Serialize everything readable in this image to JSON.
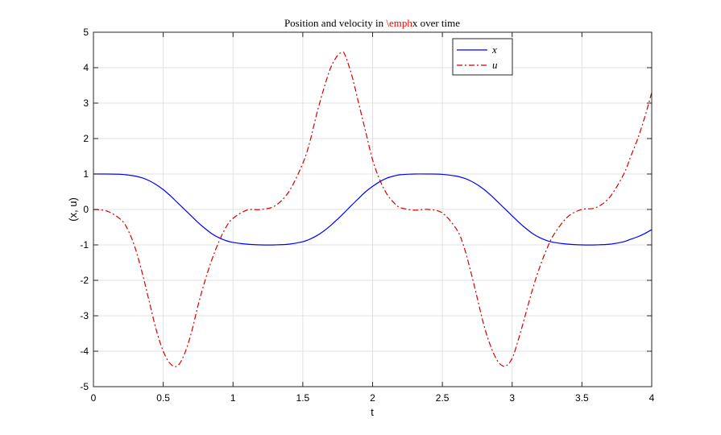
{
  "chart_data": {
    "type": "line",
    "title": {
      "prefix": "Position and velocity in ",
      "highlight": "\\emph",
      "suffix": "x over time",
      "highlight_color": "#ff0000"
    },
    "xlabel": "t",
    "ylabel": "(x, u)",
    "xlim": [
      0,
      4
    ],
    "ylim": [
      -5,
      5
    ],
    "xticks": [
      0,
      0.5,
      1,
      1.5,
      2,
      2.5,
      3,
      3.5,
      4
    ],
    "xtick_labels": [
      "0",
      "0.5",
      "1",
      "1.5",
      "2",
      "2.5",
      "3",
      "3.5",
      "4"
    ],
    "yticks": [
      -5,
      -4,
      -3,
      -2,
      -1,
      0,
      1,
      2,
      3,
      4,
      5
    ],
    "ytick_labels": [
      "-5",
      "-4",
      "-3",
      "-2",
      "-1",
      "0",
      "1",
      "2",
      "3",
      "4",
      "5"
    ],
    "grid": true,
    "legend_position": "top-right",
    "series": [
      {
        "name": "x",
        "color": "#0000ff",
        "style": "solid",
        "x": [
          0,
          0.1,
          0.2,
          0.25,
          0.3,
          0.35,
          0.4,
          0.45,
          0.5,
          0.55,
          0.6,
          0.65,
          0.7,
          0.75,
          0.8,
          0.85,
          0.9,
          0.95,
          1.0,
          1.1,
          1.2,
          1.3,
          1.4,
          1.5,
          1.55,
          1.6,
          1.65,
          1.7,
          1.75,
          1.8,
          1.85,
          1.9,
          1.95,
          2.0,
          2.05,
          2.1,
          2.15,
          2.2,
          2.3,
          2.4,
          2.5,
          2.6,
          2.65,
          2.7,
          2.75,
          2.8,
          2.85,
          2.9,
          2.95,
          3.0,
          3.05,
          3.1,
          3.15,
          3.2,
          3.25,
          3.3,
          3.4,
          3.5,
          3.6,
          3.7,
          3.8,
          3.85,
          3.9,
          3.95,
          4.0
        ],
        "y": [
          1.0,
          1.0,
          0.99,
          0.97,
          0.94,
          0.89,
          0.81,
          0.7,
          0.56,
          0.39,
          0.2,
          0.01,
          -0.18,
          -0.37,
          -0.54,
          -0.69,
          -0.8,
          -0.88,
          -0.93,
          -0.98,
          -1.0,
          -1.0,
          -0.98,
          -0.91,
          -0.84,
          -0.74,
          -0.61,
          -0.45,
          -0.27,
          -0.08,
          0.12,
          0.31,
          0.5,
          0.65,
          0.78,
          0.88,
          0.94,
          0.98,
          1.0,
          1.0,
          0.99,
          0.94,
          0.89,
          0.81,
          0.7,
          0.56,
          0.39,
          0.2,
          0.01,
          -0.18,
          -0.37,
          -0.54,
          -0.69,
          -0.8,
          -0.88,
          -0.93,
          -0.98,
          -1.0,
          -1.0,
          -0.98,
          -0.91,
          -0.84,
          -0.77,
          -0.68,
          -0.57
        ]
      },
      {
        "name": "u",
        "color": "#d40000",
        "style": "dashdot",
        "x": [
          0,
          0.1,
          0.2,
          0.25,
          0.3,
          0.35,
          0.4,
          0.45,
          0.5,
          0.55,
          0.6,
          0.65,
          0.7,
          0.75,
          0.8,
          0.85,
          0.9,
          0.95,
          1.0,
          1.1,
          1.2,
          1.3,
          1.4,
          1.5,
          1.55,
          1.6,
          1.65,
          1.7,
          1.75,
          1.78,
          1.8,
          1.85,
          1.9,
          1.95,
          2.0,
          2.05,
          2.1,
          2.15,
          2.2,
          2.3,
          2.4,
          2.5,
          2.6,
          2.65,
          2.7,
          2.75,
          2.8,
          2.85,
          2.9,
          2.95,
          3.0,
          3.05,
          3.1,
          3.15,
          3.2,
          3.25,
          3.3,
          3.4,
          3.5,
          3.6,
          3.7,
          3.8,
          3.85,
          3.9,
          3.95,
          4.0
        ],
        "y": [
          0.0,
          -0.05,
          -0.3,
          -0.6,
          -1.1,
          -1.8,
          -2.6,
          -3.4,
          -4.0,
          -4.35,
          -4.42,
          -4.1,
          -3.5,
          -2.7,
          -2.0,
          -1.4,
          -0.9,
          -0.5,
          -0.25,
          -0.02,
          0.0,
          0.1,
          0.5,
          1.3,
          1.9,
          2.7,
          3.4,
          4.0,
          4.35,
          4.42,
          4.38,
          3.8,
          3.0,
          2.2,
          1.4,
          0.85,
          0.45,
          0.2,
          0.05,
          -0.02,
          0.0,
          -0.1,
          -0.55,
          -1.0,
          -1.7,
          -2.5,
          -3.3,
          -3.9,
          -4.3,
          -4.42,
          -4.2,
          -3.6,
          -2.9,
          -2.2,
          -1.6,
          -1.1,
          -0.7,
          -0.2,
          0.0,
          0.05,
          0.35,
          1.0,
          1.5,
          2.0,
          2.6,
          3.3
        ]
      }
    ]
  }
}
